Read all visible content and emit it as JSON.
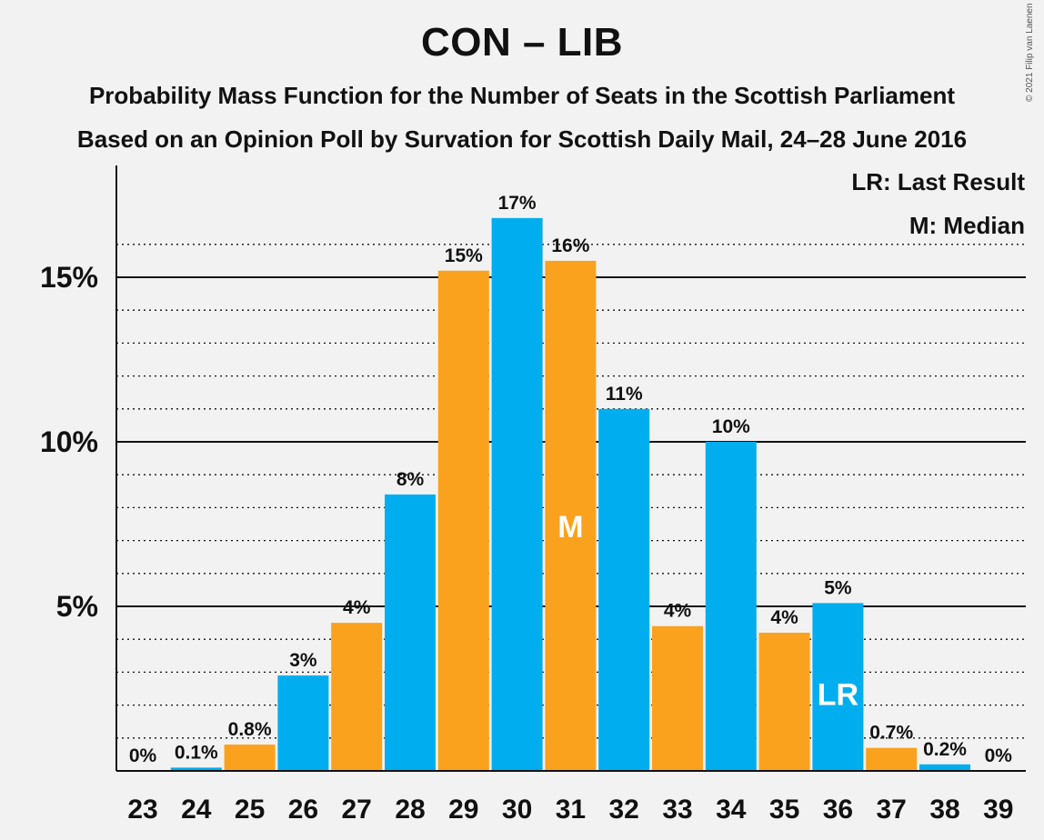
{
  "header": {
    "title": "CON – LIB",
    "subtitle1": "Probability Mass Function for the Number of Seats in the Scottish Parliament",
    "subtitle2": "Based on an Opinion Poll by Survation for Scottish Daily Mail, 24–28 June 2016",
    "copyright": "© 2021 Filip van Laenen"
  },
  "legend": {
    "last_result": "LR: Last Result",
    "median": "M: Median"
  },
  "colors": {
    "blue": "#00aeef",
    "orange": "#faa21e"
  },
  "chart_data": {
    "type": "bar",
    "categories": [
      "23",
      "24",
      "25",
      "26",
      "27",
      "28",
      "29",
      "30",
      "31",
      "32",
      "33",
      "34",
      "35",
      "36",
      "37",
      "38",
      "39"
    ],
    "values": [
      0,
      0.1,
      0.8,
      2.9,
      4.5,
      8.4,
      15.2,
      16.8,
      15.5,
      11.0,
      4.4,
      10.0,
      4.2,
      5.1,
      0.7,
      0.2,
      0
    ],
    "data_labels": [
      "0%",
      "0.1%",
      "0.8%",
      "3%",
      "4%",
      "8%",
      "15%",
      "17%",
      "16%",
      "11%",
      "4%",
      "10%",
      "4%",
      "5%",
      "0.7%",
      "0.2%",
      "0%"
    ],
    "bar_colors": [
      "blue",
      "blue",
      "orange",
      "blue",
      "orange",
      "blue",
      "orange",
      "blue",
      "orange",
      "blue",
      "orange",
      "blue",
      "orange",
      "blue",
      "orange",
      "blue",
      "blue"
    ],
    "ylim": [
      0,
      18
    ],
    "yticks": [
      5,
      10,
      15
    ],
    "ytick_labels": [
      "5%",
      "10%",
      "15%"
    ],
    "minor_grid_step": 1,
    "median_seat": "31",
    "median_marker": "M",
    "last_result_seat": "36",
    "last_result_marker": "LR",
    "legend_position": "top-right"
  }
}
